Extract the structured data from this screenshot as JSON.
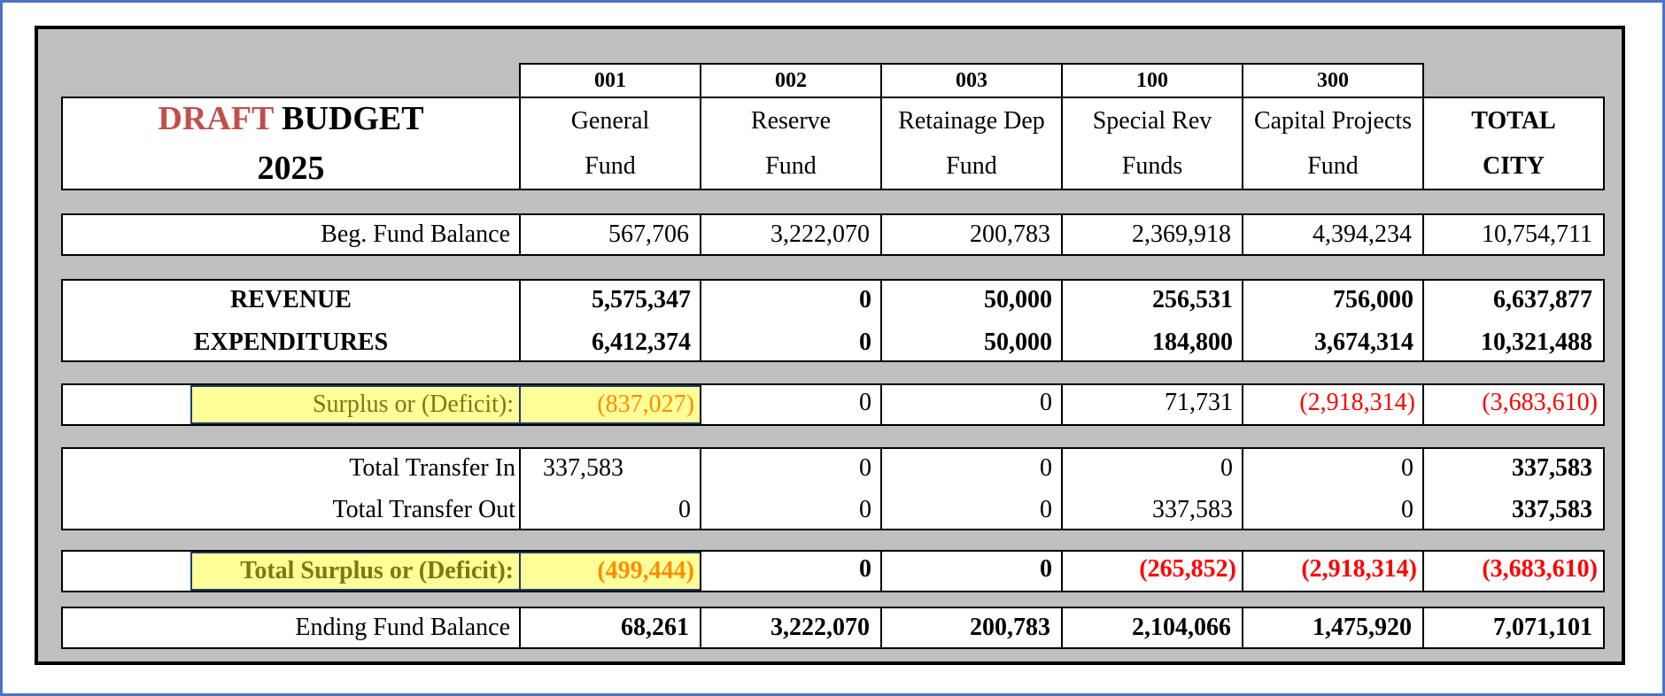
{
  "title": {
    "draft": "DRAFT",
    "budget": "BUDGET",
    "year": "2025"
  },
  "columns": [
    {
      "code": "001",
      "line1": "General",
      "line2": "Fund"
    },
    {
      "code": "002",
      "line1": "Reserve",
      "line2": "Fund"
    },
    {
      "code": "003",
      "line1": "Retainage Dep",
      "line2": "Fund"
    },
    {
      "code": "100",
      "line1": "Special Rev",
      "line2": "Funds"
    },
    {
      "code": "300",
      "line1": "Capital Projects",
      "line2": "Fund"
    }
  ],
  "total_header": {
    "line1": "TOTAL",
    "line2": "CITY"
  },
  "rows": {
    "beg_balance": {
      "label": "Beg. Fund Balance",
      "values": [
        "567,706",
        "3,222,070",
        "200,783",
        "2,369,918",
        "4,394,234",
        "10,754,711"
      ]
    },
    "revenue": {
      "label": "REVENUE",
      "values": [
        "5,575,347",
        "0",
        "50,000",
        "256,531",
        "756,000",
        "6,637,877"
      ]
    },
    "expenditures": {
      "label": "EXPENDITURES",
      "values": [
        "6,412,374",
        "0",
        "50,000",
        "184,800",
        "3,674,314",
        "10,321,488"
      ]
    },
    "surplus": {
      "label": "Surplus or (Deficit):",
      "values": [
        "(837,027)",
        "0",
        "0",
        "71,731",
        "(2,918,314)",
        "(3,683,610)"
      ]
    },
    "transfer_in": {
      "label": "Total Transfer In",
      "values": [
        "337,583",
        "0",
        "0",
        "0",
        "0",
        "337,583"
      ]
    },
    "transfer_out": {
      "label": "Total Transfer Out",
      "values": [
        "0",
        "0",
        "0",
        "337,583",
        "0",
        "337,583"
      ]
    },
    "total_surplus": {
      "label": "Total Surplus or (Deficit):",
      "values": [
        "(499,444)",
        "0",
        "0",
        "(265,852)",
        "(2,918,314)",
        "(3,683,610)"
      ]
    },
    "ending_balance": {
      "label": "Ending Fund Balance",
      "values": [
        "68,261",
        "3,222,070",
        "200,783",
        "2,104,066",
        "1,475,920",
        "7,071,101"
      ]
    }
  },
  "colors": {
    "frame_border": "#4a74c4",
    "sheet_bg": "#c0c0c0",
    "draft_red": "#c0504d",
    "negative_red": "#ff0000",
    "highlight_yellow": "#ffff99",
    "orange": "#ff8c00",
    "olive": "#7a7a14"
  }
}
